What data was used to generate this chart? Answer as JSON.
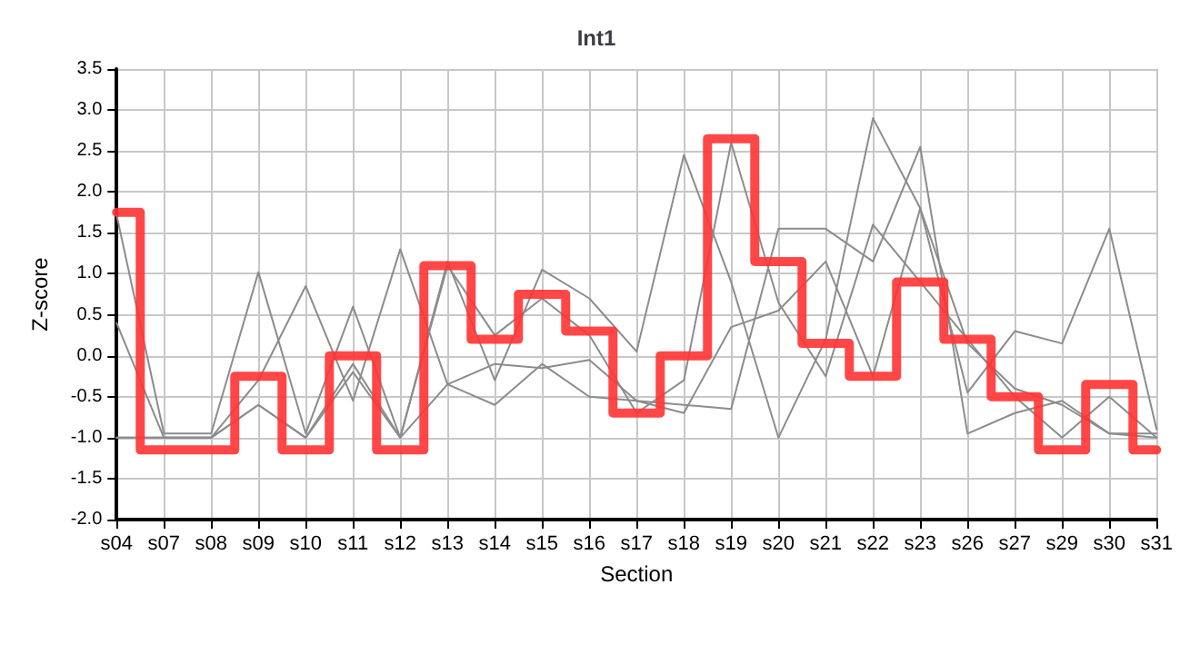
{
  "chart_data": {
    "type": "line",
    "title": "Int1",
    "xlabel": "Section",
    "ylabel": "Z-score",
    "categories": [
      "s04",
      "s07",
      "s08",
      "s09",
      "s10",
      "s11",
      "s12",
      "s13",
      "s14",
      "s15",
      "s16",
      "s17",
      "s18",
      "s19",
      "s20",
      "s21",
      "s22",
      "s23",
      "s26",
      "s27",
      "s29",
      "s30",
      "s31"
    ],
    "ylim": [
      -2,
      3.5
    ],
    "yticks": [
      {
        "value": -2,
        "label": "-2.0"
      },
      -1.5,
      {
        "value": -1,
        "label": "-1.0"
      },
      -0.5,
      {
        "value": 0,
        "label": "0.0"
      },
      0.5,
      {
        "value": 1,
        "label": "1.0"
      },
      1.5,
      {
        "value": 2,
        "label": "2.0"
      },
      2.5,
      {
        "value": 3,
        "label": "3.0"
      },
      3.5
    ],
    "grid": true,
    "marker": "none",
    "line_style": "solid",
    "series": [
      {
        "color": "#8c8c8c",
        "values": [
          1.72,
          -0.95,
          -0.95,
          1.02,
          -0.95,
          0.6,
          -1.0,
          1.15,
          -0.3,
          1.05,
          0.7,
          0.05,
          2.45,
          0.9,
          -1.0,
          0.2,
          2.9,
          1.8,
          -0.45,
          0.3,
          0.15,
          1.55,
          -0.9
        ]
      },
      {
        "color": "#8c8c8c",
        "values": [
          0.4,
          -1.0,
          -1.0,
          -0.3,
          0.85,
          -0.55,
          1.3,
          -0.35,
          -0.1,
          -0.15,
          -0.05,
          -0.55,
          -0.6,
          -0.65,
          1.55,
          1.55,
          1.15,
          2.55,
          -0.95,
          -0.7,
          -0.55,
          -0.95,
          -0.95
        ]
      },
      {
        "color": "#8c8c8c",
        "values": [
          -1.0,
          -1.0,
          -1.0,
          -0.6,
          -1.0,
          -0.1,
          -1.0,
          1.1,
          0.25,
          0.7,
          0.25,
          -0.7,
          -0.3,
          2.6,
          0.65,
          -0.25,
          1.6,
          0.9,
          0.2,
          -0.5,
          -1.0,
          -0.5,
          -1.0
        ]
      },
      {
        "color": "#8c8c8c",
        "values": [
          -1.0,
          -1.0,
          -1.0,
          -0.6,
          -1.0,
          -0.2,
          -1.0,
          -0.35,
          -0.6,
          -0.1,
          -0.5,
          -0.55,
          -0.7,
          0.35,
          0.55,
          1.15,
          -0.25,
          1.8,
          0.15,
          -0.4,
          -0.6,
          -0.95,
          -1.0
        ]
      },
      {
        "type": "step",
        "color": "#ff3333",
        "values": [
          1.75,
          -1.15,
          -1.15,
          -0.25,
          -1.15,
          0.0,
          -1.15,
          1.1,
          0.2,
          0.75,
          0.3,
          -0.7,
          0.0,
          2.65,
          1.15,
          0.15,
          -0.25,
          0.9,
          0.2,
          -0.5,
          -1.15,
          -0.35,
          -1.15
        ]
      }
    ]
  }
}
